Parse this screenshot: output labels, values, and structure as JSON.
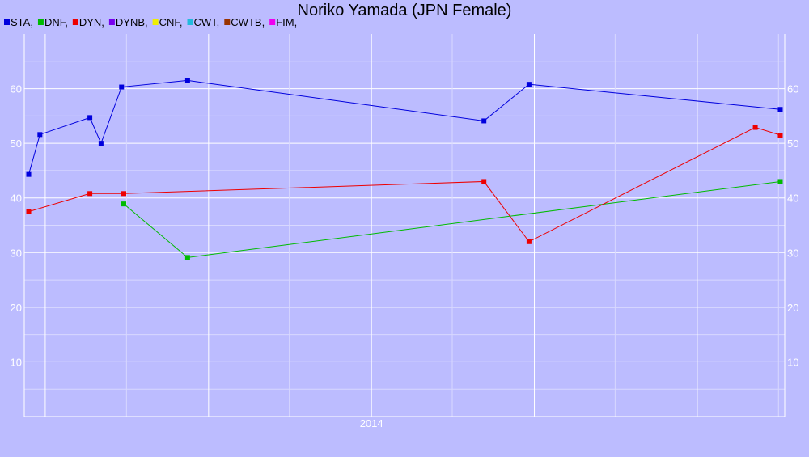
{
  "chart_data": {
    "type": "line",
    "title": "Noriko Yamada (JPN Female)",
    "xlabel": "",
    "ylabel": "",
    "ylim": [
      0,
      70
    ],
    "yticks": [
      10,
      20,
      30,
      40,
      50,
      60
    ],
    "x_range": [
      "2011-11-15",
      "2016-07-15"
    ],
    "xtick_labels": [
      {
        "label": "2014",
        "x": "2014-01-01"
      }
    ],
    "grid": true,
    "legend_position": "top-left",
    "legend": [
      {
        "name": "STA,",
        "color": "#0000dd"
      },
      {
        "name": "DNF,",
        "color": "#00bb00"
      },
      {
        "name": "DYN,",
        "color": "#ee0000"
      },
      {
        "name": "DYNB,",
        "color": "#7700ee"
      },
      {
        "name": "CNF,",
        "color": "#eeee00"
      },
      {
        "name": "CWT,",
        "color": "#22bbdd"
      },
      {
        "name": "CWTB,",
        "color": "#993300"
      },
      {
        "name": "FIM,",
        "color": "#ee00ee"
      }
    ],
    "series": [
      {
        "name": "STA",
        "color": "#0000dd",
        "points": [
          {
            "x": "2011-11-25",
            "y": 44.3
          },
          {
            "x": "2011-12-20",
            "y": 51.6
          },
          {
            "x": "2012-04-10",
            "y": 54.7
          },
          {
            "x": "2012-05-05",
            "y": 50.0
          },
          {
            "x": "2012-06-20",
            "y": 60.3
          },
          {
            "x": "2012-11-15",
            "y": 61.5
          },
          {
            "x": "2014-09-10",
            "y": 54.1
          },
          {
            "x": "2014-12-20",
            "y": 60.8
          },
          {
            "x": "2016-07-05",
            "y": 56.2
          }
        ]
      },
      {
        "name": "DNF",
        "color": "#00bb00",
        "points": [
          {
            "x": "2012-06-25",
            "y": 38.9
          },
          {
            "x": "2012-11-15",
            "y": 29.1
          },
          {
            "x": "2016-07-05",
            "y": 43.0
          }
        ]
      },
      {
        "name": "DYN",
        "color": "#ee0000",
        "points": [
          {
            "x": "2011-11-25",
            "y": 37.5
          },
          {
            "x": "2012-04-10",
            "y": 40.8
          },
          {
            "x": "2012-06-25",
            "y": 40.8
          },
          {
            "x": "2014-09-10",
            "y": 43.0
          },
          {
            "x": "2014-12-20",
            "y": 32.0
          },
          {
            "x": "2016-05-10",
            "y": 52.9
          },
          {
            "x": "2016-07-05",
            "y": 51.5
          }
        ]
      }
    ]
  }
}
